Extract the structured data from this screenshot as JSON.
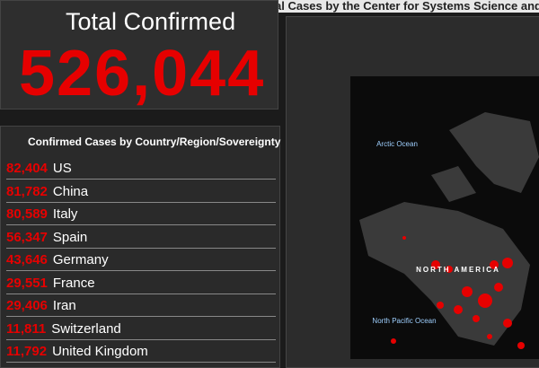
{
  "header": {
    "title": "al Cases by the Center for Systems Science and Eng"
  },
  "total": {
    "label": "Total Confirmed",
    "value": "526,044"
  },
  "list": {
    "title": "Confirmed Cases by Country/Region/Sovereignty",
    "rows": [
      [
        "82,404",
        "US"
      ],
      [
        "81,782",
        "China"
      ],
      [
        "80,589",
        "Italy"
      ],
      [
        "56,347",
        "Spain"
      ],
      [
        "43,646",
        "Germany"
      ],
      [
        "29,551",
        "France"
      ],
      [
        "29,406",
        "Iran"
      ],
      [
        "11,811",
        "Switzerland"
      ],
      [
        "11,792",
        "United Kingdom"
      ]
    ]
  },
  "map": {
    "labels": [
      "Arctic Ocean",
      "NORTH AMERICA",
      "North Pacific Ocean"
    ]
  }
}
